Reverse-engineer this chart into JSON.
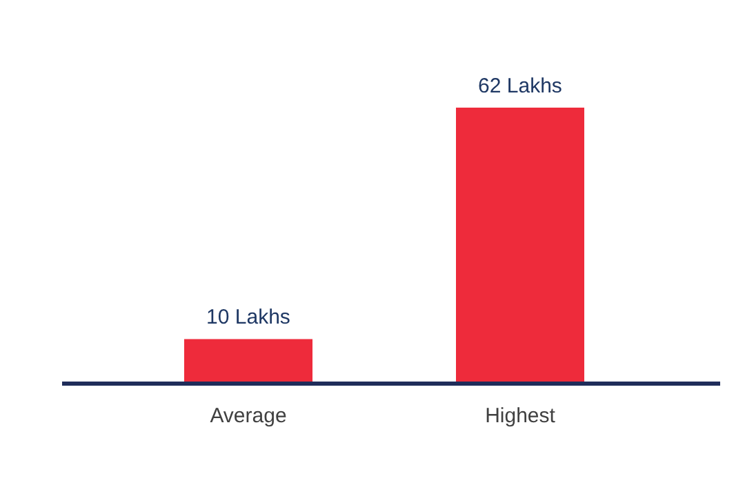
{
  "chart_data": {
    "type": "bar",
    "categories": [
      "Average",
      "Highest"
    ],
    "values": [
      10,
      62
    ],
    "color": "#ee2b3b",
    "value_labels": [
      "10 Lakhs",
      "62 Lakhs"
    ]
  }
}
